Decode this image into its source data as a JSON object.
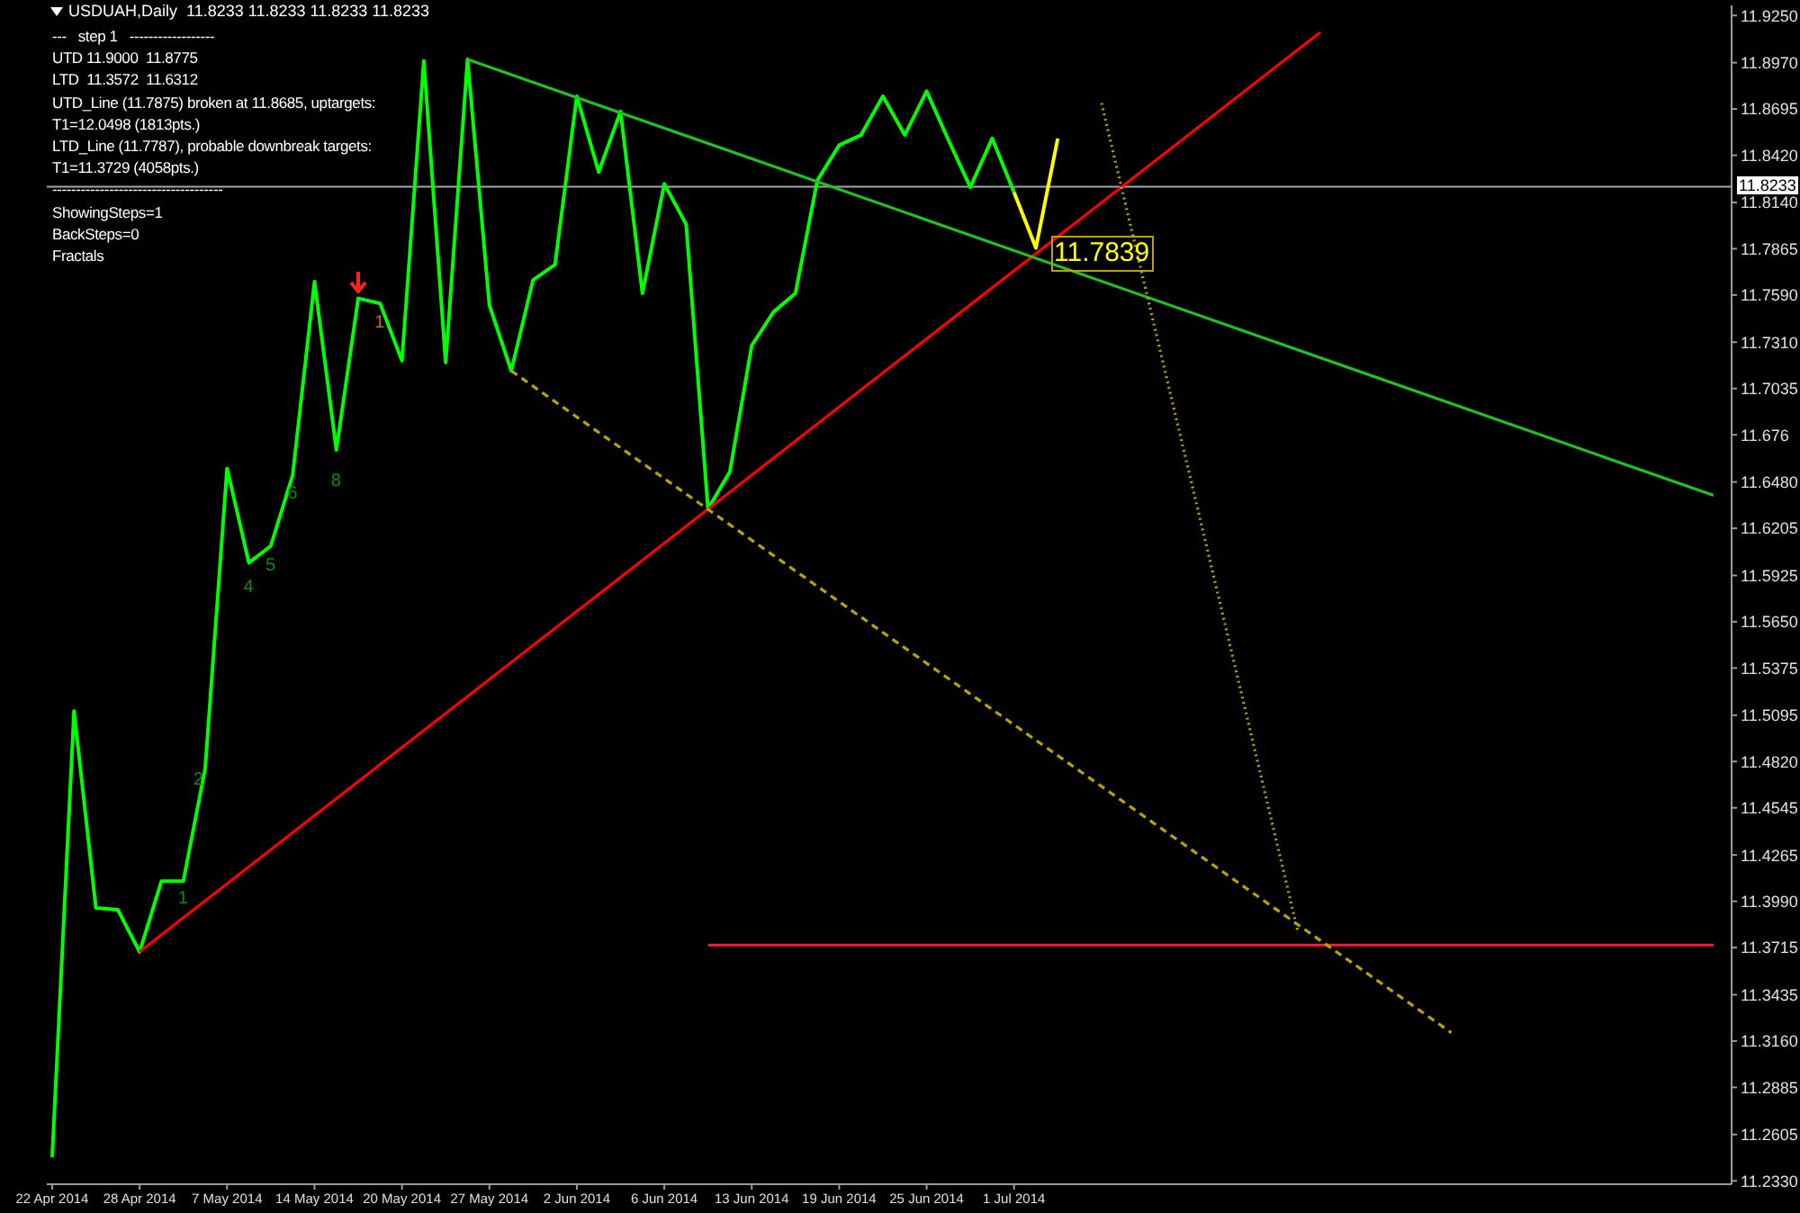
{
  "chart_data": {
    "type": "line",
    "title": "USDUAH,Daily  11.8233 11.8233 11.8233 11.8233",
    "categories": [
      "22 Apr 2014",
      null,
      null,
      null,
      "28 Apr 2014",
      null,
      null,
      null,
      "7 May 2014",
      null,
      null,
      null,
      "14 May 2014",
      null,
      null,
      null,
      "20 May 2014",
      null,
      null,
      null,
      "27 May 2014",
      null,
      null,
      null,
      "2 Jun 2014",
      null,
      null,
      null,
      "6 Jun 2014",
      null,
      null,
      null,
      "13 Jun 2014",
      null,
      null,
      null,
      "19 Jun 2014",
      null,
      null,
      null,
      "25 Jun 2014",
      null,
      null,
      null,
      "1 Jul 2014",
      null,
      null,
      null,
      null,
      null,
      null,
      null,
      null,
      null,
      null,
      null,
      null,
      null,
      null,
      null,
      null,
      null,
      null,
      null,
      null,
      null,
      null,
      null,
      null,
      null,
      null,
      null,
      null,
      null,
      null,
      null,
      null
    ],
    "series": [
      {
        "color": "#00ff00",
        "values": [
          11.247,
          11.512,
          11.395,
          11.394,
          11.369,
          11.411,
          11.411,
          11.478,
          11.656,
          11.6,
          11.61,
          11.652,
          11.767,
          11.667,
          11.757,
          11.754,
          11.72,
          11.898,
          11.719,
          11.899,
          11.753,
          11.714,
          11.768,
          11.777,
          11.877,
          11.832,
          11.868,
          11.76,
          11.825,
          11.801,
          11.632,
          11.654,
          11.729,
          11.749,
          11.76,
          11.827,
          11.848,
          11.854,
          11.877,
          11.854,
          11.88,
          11.851,
          11.823,
          11.852,
          11.82,
          null,
          null,
          null,
          null,
          null,
          null,
          null,
          null,
          null,
          null,
          null,
          null,
          null,
          null,
          null,
          null,
          null,
          null,
          null,
          null,
          null,
          null,
          null,
          null,
          null,
          null,
          null,
          null,
          null,
          null,
          null,
          null
        ]
      },
      {
        "color": "#ffff00",
        "values": [
          null,
          null,
          null,
          null,
          null,
          null,
          null,
          null,
          null,
          null,
          null,
          null,
          null,
          null,
          null,
          null,
          null,
          null,
          null,
          null,
          null,
          null,
          null,
          null,
          null,
          null,
          null,
          null,
          null,
          null,
          null,
          null,
          null,
          null,
          null,
          null,
          null,
          null,
          null,
          null,
          null,
          null,
          null,
          null,
          11.82,
          11.787,
          11.852,
          null,
          null,
          null,
          null,
          null,
          null,
          null,
          null,
          null,
          null,
          null,
          null,
          null,
          null,
          null,
          null,
          null,
          null,
          null,
          null,
          null,
          null,
          null,
          null,
          null,
          null,
          null,
          null,
          null,
          null
        ]
      },
      {
        "color": "#ff0000",
        "values": [
          null,
          null,
          null,
          null,
          11.369,
          null,
          null,
          null,
          null,
          null,
          null,
          null,
          null,
          null,
          null,
          null,
          null,
          null,
          null,
          null,
          null,
          null,
          null,
          null,
          null,
          null,
          null,
          null,
          null,
          null,
          null,
          null,
          null,
          null,
          null,
          null,
          null,
          null,
          null,
          null,
          null,
          null,
          null,
          null,
          null,
          null,
          null,
          null,
          null,
          null,
          null,
          null,
          null,
          null,
          null,
          null,
          null,
          null,
          11.915,
          null,
          null,
          null,
          null,
          null,
          null,
          null,
          null,
          null,
          null,
          null,
          null,
          null,
          null,
          null,
          null,
          null,
          null
        ]
      },
      {
        "color": "#22c022",
        "values": [
          null,
          null,
          null,
          null,
          null,
          null,
          null,
          null,
          null,
          null,
          null,
          null,
          null,
          null,
          null,
          null,
          null,
          null,
          null,
          11.899,
          null,
          null,
          null,
          null,
          null,
          null,
          null,
          null,
          null,
          null,
          null,
          null,
          null,
          null,
          null,
          null,
          null,
          null,
          null,
          null,
          null,
          null,
          null,
          null,
          null,
          null,
          null,
          null,
          null,
          null,
          null,
          null,
          null,
          null,
          null,
          null,
          null,
          null,
          null,
          null,
          null,
          null,
          null,
          null,
          null,
          null,
          null,
          null,
          null,
          null,
          null,
          null,
          null,
          null,
          null,
          null,
          11.64
        ]
      },
      {
        "color": "#ff1a3c",
        "values": [
          null,
          null,
          null,
          null,
          null,
          null,
          null,
          null,
          null,
          null,
          null,
          null,
          null,
          null,
          null,
          null,
          null,
          null,
          null,
          null,
          null,
          null,
          null,
          null,
          null,
          null,
          null,
          null,
          null,
          null,
          11.373,
          null,
          null,
          null,
          null,
          null,
          null,
          null,
          null,
          null,
          null,
          null,
          null,
          null,
          null,
          null,
          null,
          null,
          null,
          null,
          null,
          null,
          null,
          null,
          null,
          null,
          null,
          null,
          null,
          null,
          null,
          null,
          null,
          null,
          null,
          null,
          null,
          null,
          null,
          null,
          null,
          null,
          null,
          null,
          null,
          null,
          11.373
        ]
      },
      {
        "color": "#b8a300",
        "line_style": "dashed",
        "values": [
          null,
          null,
          null,
          null,
          null,
          null,
          null,
          null,
          null,
          null,
          null,
          null,
          null,
          null,
          null,
          null,
          null,
          null,
          null,
          null,
          null,
          11.714,
          null,
          null,
          null,
          null,
          null,
          null,
          null,
          null,
          null,
          null,
          null,
          null,
          null,
          null,
          null,
          null,
          null,
          null,
          null,
          null,
          null,
          null,
          null,
          null,
          null,
          null,
          null,
          null,
          null,
          null,
          null,
          null,
          null,
          null,
          null,
          null,
          null,
          null,
          null,
          null,
          null,
          null,
          11.321,
          null,
          null,
          null,
          null,
          null,
          null,
          null,
          null,
          null,
          null,
          null,
          null
        ]
      },
      {
        "color": "#b8a300",
        "line_style": "dotted",
        "values": [
          null,
          null,
          null,
          null,
          null,
          null,
          null,
          null,
          null,
          null,
          null,
          null,
          null,
          null,
          null,
          null,
          null,
          null,
          null,
          null,
          null,
          null,
          null,
          null,
          null,
          null,
          null,
          null,
          null,
          null,
          null,
          null,
          null,
          null,
          null,
          null,
          null,
          null,
          null,
          null,
          null,
          null,
          null,
          null,
          null,
          null,
          null,
          null,
          11.873,
          null,
          null,
          null,
          null,
          null,
          null,
          null,
          null,
          11.38,
          null,
          null,
          null,
          null,
          null,
          null,
          null,
          null,
          null,
          null,
          null,
          null,
          null,
          null,
          null,
          null,
          null,
          null,
          null
        ]
      }
    ],
    "ylim": [
      11.231,
      11.931
    ],
    "yticks": [
      {
        "value": 11.233,
        "label": "11.2330"
      },
      11.2605,
      11.2885,
      {
        "value": 11.316,
        "label": "11.3160"
      },
      11.3435,
      11.3715,
      {
        "value": 11.399,
        "label": "11.3990"
      },
      11.4265,
      11.4545,
      {
        "value": 11.482,
        "label": "11.4820"
      },
      11.5095,
      11.5375,
      {
        "value": 11.565,
        "label": "11.5650"
      },
      11.5925,
      11.6205,
      {
        "value": 11.648,
        "label": "11.6480"
      },
      11.676,
      {
        "value": 11.7035,
        "label": "11.7035"
      },
      {
        "value": 11.731,
        "label": "11.7310"
      },
      {
        "value": 11.759,
        "label": "11.7590"
      },
      11.7865,
      {
        "value": 11.814,
        "label": "11.8140"
      },
      {
        "value": 11.842,
        "label": "11.8420"
      },
      11.8695,
      {
        "value": 11.897,
        "label": "11.8970"
      },
      {
        "value": 11.925,
        "label": "11.9250"
      }
    ],
    "ref_lines": [
      {
        "axis": "y",
        "value": 11.8233,
        "label": "11.8233",
        "color": "#a0a8b0"
      }
    ],
    "annotations": [
      "---   step 1   ------------------",
      "UTD 11.9000  11.8775",
      "LTD  11.3572  11.6312",
      "UTD_Line (11.7875) broken at 11.8685, uptargets:",
      "T1=12.0498 (1813pts.)",
      "LTD_Line (11.7787), probable downbreak targets:",
      "T1=11.3729 (4058pts.)",
      "------------------------------------",
      "ShowingSteps=1",
      "BackSteps=0",
      "Fractals",
      "11.7839",
      "1",
      "2",
      "4",
      "5",
      "6",
      "8",
      "1"
    ]
  }
}
